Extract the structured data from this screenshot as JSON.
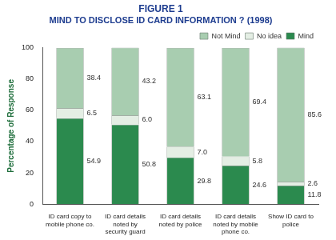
{
  "chart_data": {
    "type": "bar",
    "title": "FIGURE 1",
    "subtitle": "MIND TO DISCLOSE ID CARD INFORMATION ? (1998)",
    "y_label": "Percentage of Response",
    "categories": [
      "ID card copy to mobile phone co.",
      "ID card details noted by security guard",
      "ID card details noted by police",
      "ID card details noted by mobile phone co.",
      "Show ID card to police"
    ],
    "series": [
      {
        "name": "Mind",
        "color": "#2b8a4e",
        "values": [
          54.9,
          50.8,
          29.8,
          24.6,
          11.8
        ],
        "value_labels": [
          "54.9",
          "50.8",
          "29.8",
          "24.6",
          "11.8"
        ]
      },
      {
        "name": "No idea",
        "color": "#e4eee4",
        "values": [
          6.5,
          6.0,
          7.0,
          5.8,
          2.6
        ],
        "value_labels": [
          "6.5",
          "6.0",
          "7.0",
          "5.8",
          "2.6"
        ]
      },
      {
        "name": "Not Mind",
        "color": "#a8cdb0",
        "values": [
          38.4,
          43.2,
          63.1,
          69.4,
          85.6
        ],
        "value_labels": [
          "38.4",
          "43.2",
          "63.1",
          "69.4",
          "85.6"
        ]
      }
    ],
    "ylim": [
      0,
      100
    ],
    "yticks": [
      0,
      20,
      40,
      60,
      80,
      100
    ],
    "stacked": true,
    "data_labels": true,
    "legend": "top right",
    "grid": false
  }
}
